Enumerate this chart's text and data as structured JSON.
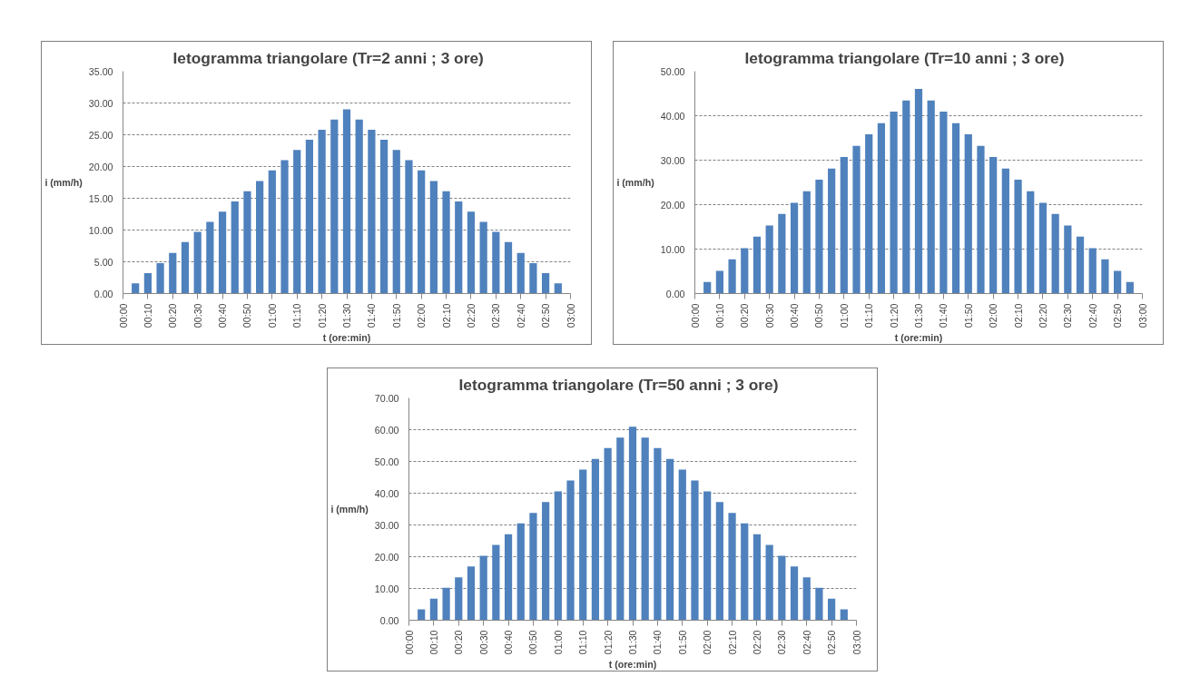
{
  "chart_data": [
    {
      "type": "bar",
      "title": "Ietogramma triangolare (Tr=2 anni ; 3 ore)",
      "xlabel": "t (ore:min)",
      "ylabel": "i (mm/h)",
      "x": [
        0.0833,
        0.1667,
        0.25,
        0.3333,
        0.4167,
        0.5,
        0.5833,
        0.6667,
        0.75,
        0.8333,
        0.9167,
        1,
        1.0833,
        1.1667,
        1.25,
        1.3333,
        1.4167,
        1.5,
        1.5833,
        1.6667,
        1.75,
        1.8333,
        1.9167,
        2,
        2.0833,
        2.1667,
        2.25,
        2.3333,
        2.4167,
        2.5,
        2.5833,
        2.6667,
        2.75,
        2.8333,
        2.9167
      ],
      "values": [
        1.6,
        3.2,
        4.8,
        6.4,
        8.1,
        9.7,
        11.3,
        12.9,
        14.5,
        16.1,
        17.7,
        19.4,
        21.0,
        22.6,
        24.2,
        25.8,
        27.4,
        29.0,
        27.4,
        25.8,
        24.2,
        22.6,
        21.0,
        19.4,
        17.7,
        16.1,
        14.5,
        12.9,
        11.3,
        9.7,
        8.1,
        6.4,
        4.8,
        3.2,
        1.6
      ],
      "color": "#4f81bd",
      "grid": "y",
      "xlim": [
        0,
        3
      ],
      "xticks": [
        {
          "value": 0,
          "label": "00:00"
        },
        {
          "value": 0.1667,
          "label": "00:10"
        },
        {
          "value": 0.3333,
          "label": "00:20"
        },
        {
          "value": 0.5,
          "label": "00:30"
        },
        {
          "value": 0.6667,
          "label": "00:40"
        },
        {
          "value": 0.8333,
          "label": "00:50"
        },
        {
          "value": 1,
          "label": "01:00"
        },
        {
          "value": 1.1667,
          "label": "01:10"
        },
        {
          "value": 1.3333,
          "label": "01:20"
        },
        {
          "value": 1.5,
          "label": "01:30"
        },
        {
          "value": 1.6667,
          "label": "01:40"
        },
        {
          "value": 1.8333,
          "label": "01:50"
        },
        {
          "value": 2,
          "label": "02:00"
        },
        {
          "value": 2.1667,
          "label": "02:10"
        },
        {
          "value": 2.3333,
          "label": "02:20"
        },
        {
          "value": 2.5,
          "label": "02:30"
        },
        {
          "value": 2.6667,
          "label": "02:40"
        },
        {
          "value": 2.8333,
          "label": "02:50"
        },
        {
          "value": 3,
          "label": "03:00"
        }
      ],
      "ylim": [
        0,
        35
      ],
      "yticks": [
        {
          "value": 0,
          "label": "0.00"
        },
        {
          "value": 5,
          "label": "5.00"
        },
        {
          "value": 10,
          "label": "10.00"
        },
        {
          "value": 15,
          "label": "15.00"
        },
        {
          "value": 20,
          "label": "20.00"
        },
        {
          "value": 25,
          "label": "25.00"
        },
        {
          "value": 30,
          "label": "30.00"
        },
        {
          "value": 35,
          "label": "35.00"
        }
      ]
    },
    {
      "type": "bar",
      "title": "Ietogramma triangolare (Tr=10 anni ; 3 ore)",
      "xlabel": "t (ore:min)",
      "ylabel": "i (mm/h)",
      "x": [
        0.0833,
        0.1667,
        0.25,
        0.3333,
        0.4167,
        0.5,
        0.5833,
        0.6667,
        0.75,
        0.8333,
        0.9167,
        1,
        1.0833,
        1.1667,
        1.25,
        1.3333,
        1.4167,
        1.5,
        1.5833,
        1.6667,
        1.75,
        1.8333,
        1.9167,
        2,
        2.0833,
        2.1667,
        2.25,
        2.3333,
        2.4167,
        2.5,
        2.5833,
        2.6667,
        2.75,
        2.8333,
        2.9167
      ],
      "values": [
        2.6,
        5.1,
        7.7,
        10.2,
        12.8,
        15.3,
        17.9,
        20.4,
        23.0,
        25.6,
        28.1,
        30.7,
        33.2,
        35.8,
        38.3,
        40.9,
        43.4,
        46.0,
        43.4,
        40.9,
        38.3,
        35.8,
        33.2,
        30.7,
        28.1,
        25.6,
        23.0,
        20.4,
        17.9,
        15.3,
        12.8,
        10.2,
        7.7,
        5.1,
        2.6
      ],
      "color": "#4f81bd",
      "grid": "y",
      "xlim": [
        0,
        3
      ],
      "xticks": [
        {
          "value": 0,
          "label": "00:00"
        },
        {
          "value": 0.1667,
          "label": "00:10"
        },
        {
          "value": 0.3333,
          "label": "00:20"
        },
        {
          "value": 0.5,
          "label": "00:30"
        },
        {
          "value": 0.6667,
          "label": "00:40"
        },
        {
          "value": 0.8333,
          "label": "00:50"
        },
        {
          "value": 1,
          "label": "01:00"
        },
        {
          "value": 1.1667,
          "label": "01:10"
        },
        {
          "value": 1.3333,
          "label": "01:20"
        },
        {
          "value": 1.5,
          "label": "01:30"
        },
        {
          "value": 1.6667,
          "label": "01:40"
        },
        {
          "value": 1.8333,
          "label": "01:50"
        },
        {
          "value": 2,
          "label": "02:00"
        },
        {
          "value": 2.1667,
          "label": "02:10"
        },
        {
          "value": 2.3333,
          "label": "02:20"
        },
        {
          "value": 2.5,
          "label": "02:30"
        },
        {
          "value": 2.6667,
          "label": "02:40"
        },
        {
          "value": 2.8333,
          "label": "02:50"
        },
        {
          "value": 3,
          "label": "03:00"
        }
      ],
      "ylim": [
        0,
        50
      ],
      "yticks": [
        {
          "value": 0,
          "label": "0.00"
        },
        {
          "value": 10,
          "label": "10.00"
        },
        {
          "value": 20,
          "label": "20.00"
        },
        {
          "value": 30,
          "label": "30.00"
        },
        {
          "value": 40,
          "label": "40.00"
        },
        {
          "value": 50,
          "label": "50.00"
        }
      ]
    },
    {
      "type": "bar",
      "title": "Ietogramma triangolare (Tr=50 anni ; 3 ore)",
      "xlabel": "t (ore:min)",
      "ylabel": "i (mm/h)",
      "x": [
        0.0833,
        0.1667,
        0.25,
        0.3333,
        0.4167,
        0.5,
        0.5833,
        0.6667,
        0.75,
        0.8333,
        0.9167,
        1,
        1.0833,
        1.1667,
        1.25,
        1.3333,
        1.4167,
        1.5,
        1.5833,
        1.6667,
        1.75,
        1.8333,
        1.9167,
        2,
        2.0833,
        2.1667,
        2.25,
        2.3333,
        2.4167,
        2.5,
        2.5833,
        2.6667,
        2.75,
        2.8333,
        2.9167
      ],
      "values": [
        3.4,
        6.8,
        10.2,
        13.5,
        16.9,
        20.3,
        23.7,
        27.1,
        30.5,
        33.8,
        37.2,
        40.6,
        44.0,
        47.4,
        50.8,
        54.2,
        57.5,
        60.9,
        57.5,
        54.2,
        50.8,
        47.4,
        44.0,
        40.6,
        37.2,
        33.8,
        30.5,
        27.1,
        23.7,
        20.3,
        16.9,
        13.5,
        10.2,
        6.8,
        3.4
      ],
      "color": "#4f81bd",
      "grid": "y",
      "xlim": [
        0,
        3
      ],
      "xticks": [
        {
          "value": 0,
          "label": "00:00"
        },
        {
          "value": 0.1667,
          "label": "00:10"
        },
        {
          "value": 0.3333,
          "label": "00:20"
        },
        {
          "value": 0.5,
          "label": "00:30"
        },
        {
          "value": 0.6667,
          "label": "00:40"
        },
        {
          "value": 0.8333,
          "label": "00:50"
        },
        {
          "value": 1,
          "label": "01:00"
        },
        {
          "value": 1.1667,
          "label": "01:10"
        },
        {
          "value": 1.3333,
          "label": "01:20"
        },
        {
          "value": 1.5,
          "label": "01:30"
        },
        {
          "value": 1.6667,
          "label": "01:40"
        },
        {
          "value": 1.8333,
          "label": "01:50"
        },
        {
          "value": 2,
          "label": "02:00"
        },
        {
          "value": 2.1667,
          "label": "02:10"
        },
        {
          "value": 2.3333,
          "label": "02:20"
        },
        {
          "value": 2.5,
          "label": "02:30"
        },
        {
          "value": 2.6667,
          "label": "02:40"
        },
        {
          "value": 2.8333,
          "label": "02:50"
        },
        {
          "value": 3,
          "label": "03:00"
        }
      ],
      "ylim": [
        0,
        70
      ],
      "yticks": [
        {
          "value": 0,
          "label": "0.00"
        },
        {
          "value": 10,
          "label": "10.00"
        },
        {
          "value": 20,
          "label": "20.00"
        },
        {
          "value": 30,
          "label": "30.00"
        },
        {
          "value": 40,
          "label": "40.00"
        },
        {
          "value": 50,
          "label": "50.00"
        },
        {
          "value": 60,
          "label": "60.00"
        },
        {
          "value": 70,
          "label": "70.00"
        }
      ]
    }
  ]
}
